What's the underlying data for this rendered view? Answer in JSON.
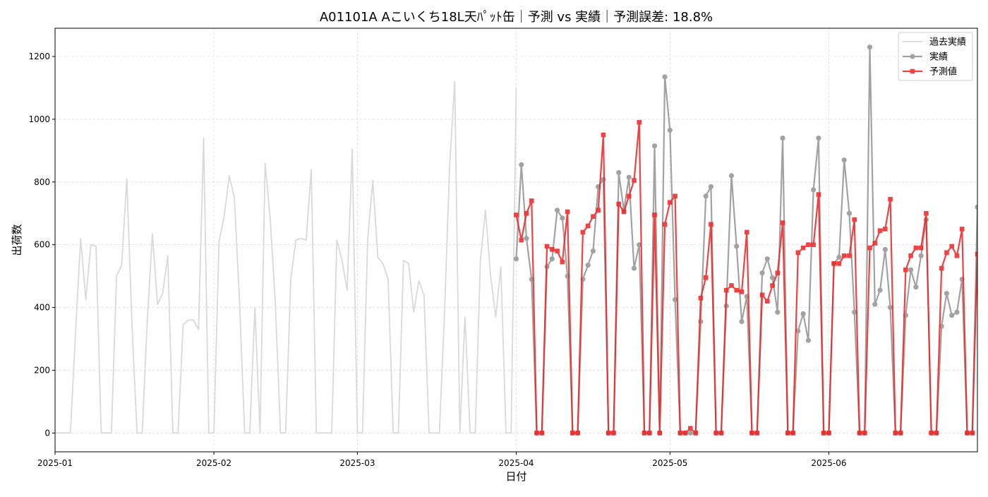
{
  "chart_data": {
    "type": "line",
    "title": "A01101A Aこいくち18L天ﾊﾟｯﾄ缶｜予測 vs 実績｜予測誤差: 18.8%",
    "xlabel": "日付",
    "ylabel": "出荷数",
    "xlim": [
      "2025-01-01",
      "2025-06-30"
    ],
    "ylim": [
      -60,
      1290
    ],
    "x_ticks": [
      "2025-01",
      "2025-02",
      "2025-03",
      "2025-04",
      "2025-05",
      "2025-06"
    ],
    "y_ticks": [
      0,
      200,
      400,
      600,
      800,
      1000,
      1200
    ],
    "grid": true,
    "legend_position": "top-right",
    "colors": {
      "history": "#d9d9d9",
      "actual": "#8c8c8c",
      "forecast": "#ee2222"
    },
    "series": [
      {
        "name": "過去実績",
        "start_date": "2025-01-01",
        "values": [
          0,
          0,
          0,
          0,
          320,
          620,
          425,
          600,
          595,
          0,
          0,
          0,
          500,
          535,
          810,
          350,
          0,
          0,
          360,
          635,
          410,
          445,
          565,
          0,
          0,
          345,
          360,
          360,
          330,
          940,
          0,
          0,
          610,
          690,
          820,
          750,
          420,
          0,
          0,
          400,
          0,
          860,
          680,
          410,
          0,
          0,
          490,
          615,
          620,
          615,
          840,
          0,
          0,
          0,
          0,
          615,
          550,
          455,
          905,
          0,
          0,
          615,
          805,
          560,
          540,
          490,
          0,
          0,
          550,
          540,
          385,
          485,
          440,
          0,
          0,
          0,
          380,
          850,
          1120,
          0,
          370,
          0,
          0,
          550,
          710,
          500,
          370,
          530,
          0,
          0,
          1100
        ]
      },
      {
        "name": "実績",
        "start_date": "2025-04-01",
        "values": [
          555,
          855,
          620,
          490,
          0,
          0,
          530,
          555,
          710,
          685,
          500,
          0,
          0,
          490,
          535,
          580,
          785,
          808,
          0,
          0,
          830,
          710,
          815,
          525,
          600,
          0,
          0,
          915,
          0,
          1135,
          965,
          425,
          0,
          0,
          0,
          0,
          355,
          755,
          785,
          0,
          0,
          405,
          820,
          595,
          355,
          435,
          0,
          0,
          510,
          555,
          495,
          385,
          940,
          0,
          0,
          325,
          380,
          295,
          775,
          940,
          0,
          0,
          540,
          560,
          870,
          700,
          385,
          0,
          0,
          1230,
          410,
          455,
          585,
          400,
          0,
          0,
          375,
          520,
          465,
          565,
          680,
          0,
          0,
          340,
          445,
          375,
          385,
          490,
          0,
          0,
          720
        ]
      },
      {
        "name": "予測値",
        "start_date": "2025-04-01",
        "values": [
          695,
          615,
          700,
          740,
          0,
          0,
          595,
          585,
          580,
          545,
          705,
          0,
          0,
          640,
          660,
          690,
          710,
          950,
          0,
          0,
          730,
          705,
          755,
          805,
          990,
          0,
          0,
          695,
          0,
          665,
          735,
          755,
          0,
          0,
          15,
          0,
          430,
          495,
          665,
          0,
          0,
          455,
          470,
          455,
          450,
          640,
          0,
          0,
          440,
          420,
          470,
          510,
          670,
          0,
          0,
          575,
          590,
          600,
          600,
          760,
          0,
          0,
          540,
          540,
          565,
          565,
          680,
          0,
          0,
          590,
          605,
          645,
          650,
          745,
          0,
          0,
          520,
          565,
          590,
          590,
          700,
          0,
          0,
          525,
          575,
          595,
          565,
          650,
          0,
          0,
          570
        ]
      }
    ]
  }
}
